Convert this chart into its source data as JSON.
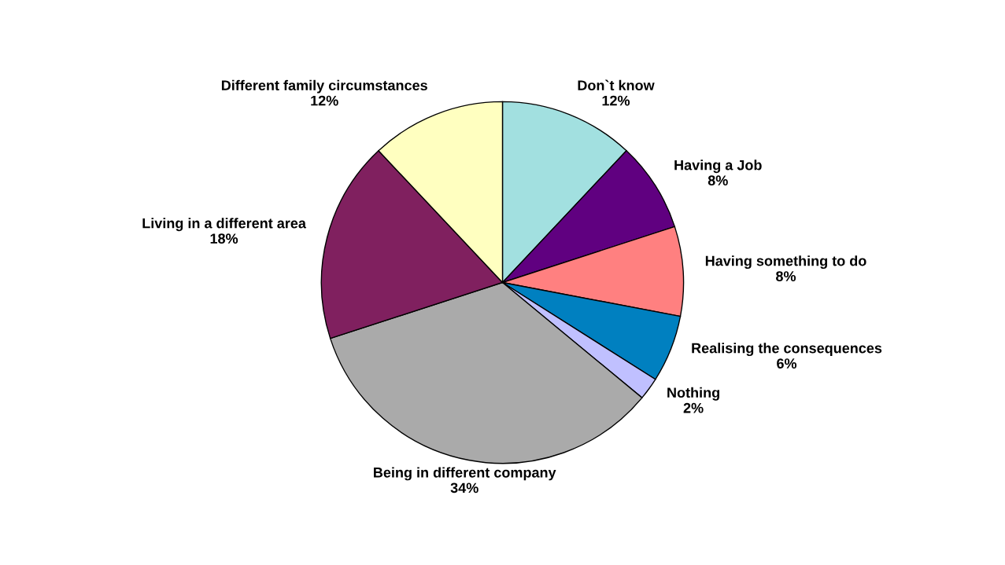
{
  "chart_data": {
    "type": "pie",
    "categories": [
      "Don`t know",
      "Having a Job",
      "Having something to do",
      "Realising the consequences",
      "Nothing",
      "Being in different company",
      "Living in a different area",
      "Different family circumstances"
    ],
    "values": [
      12,
      8,
      8,
      6,
      2,
      34,
      18,
      12
    ],
    "value_labels": [
      "12%",
      "8%",
      "8%",
      "6%",
      "2%",
      "34%",
      "18%",
      "12%"
    ],
    "colors": [
      "#a2e0e0",
      "#600080",
      "#ff8080",
      "#0080c0",
      "#c0c0ff",
      "#aaaaaa",
      "#80205f",
      "#ffffc0"
    ]
  }
}
